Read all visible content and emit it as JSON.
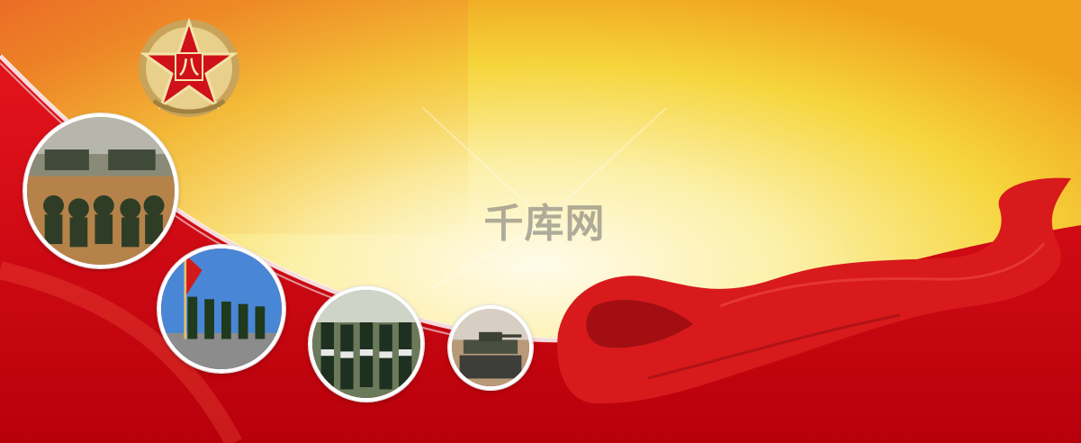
{
  "watermark": {
    "text": "千库网"
  },
  "emblem": {
    "glyph": "八"
  },
  "colors": {
    "red": "#d10012",
    "deep_red": "#a8000a",
    "yellow": "#f7e25a",
    "cream": "#fff8e0",
    "gold": "#c9a35a"
  },
  "photos": [
    {
      "subject": "soldiers-and-armored-vehicles-icon"
    },
    {
      "subject": "flag-guard-march-icon"
    },
    {
      "subject": "soldiers-marching-icon"
    },
    {
      "subject": "tank-icon"
    }
  ]
}
